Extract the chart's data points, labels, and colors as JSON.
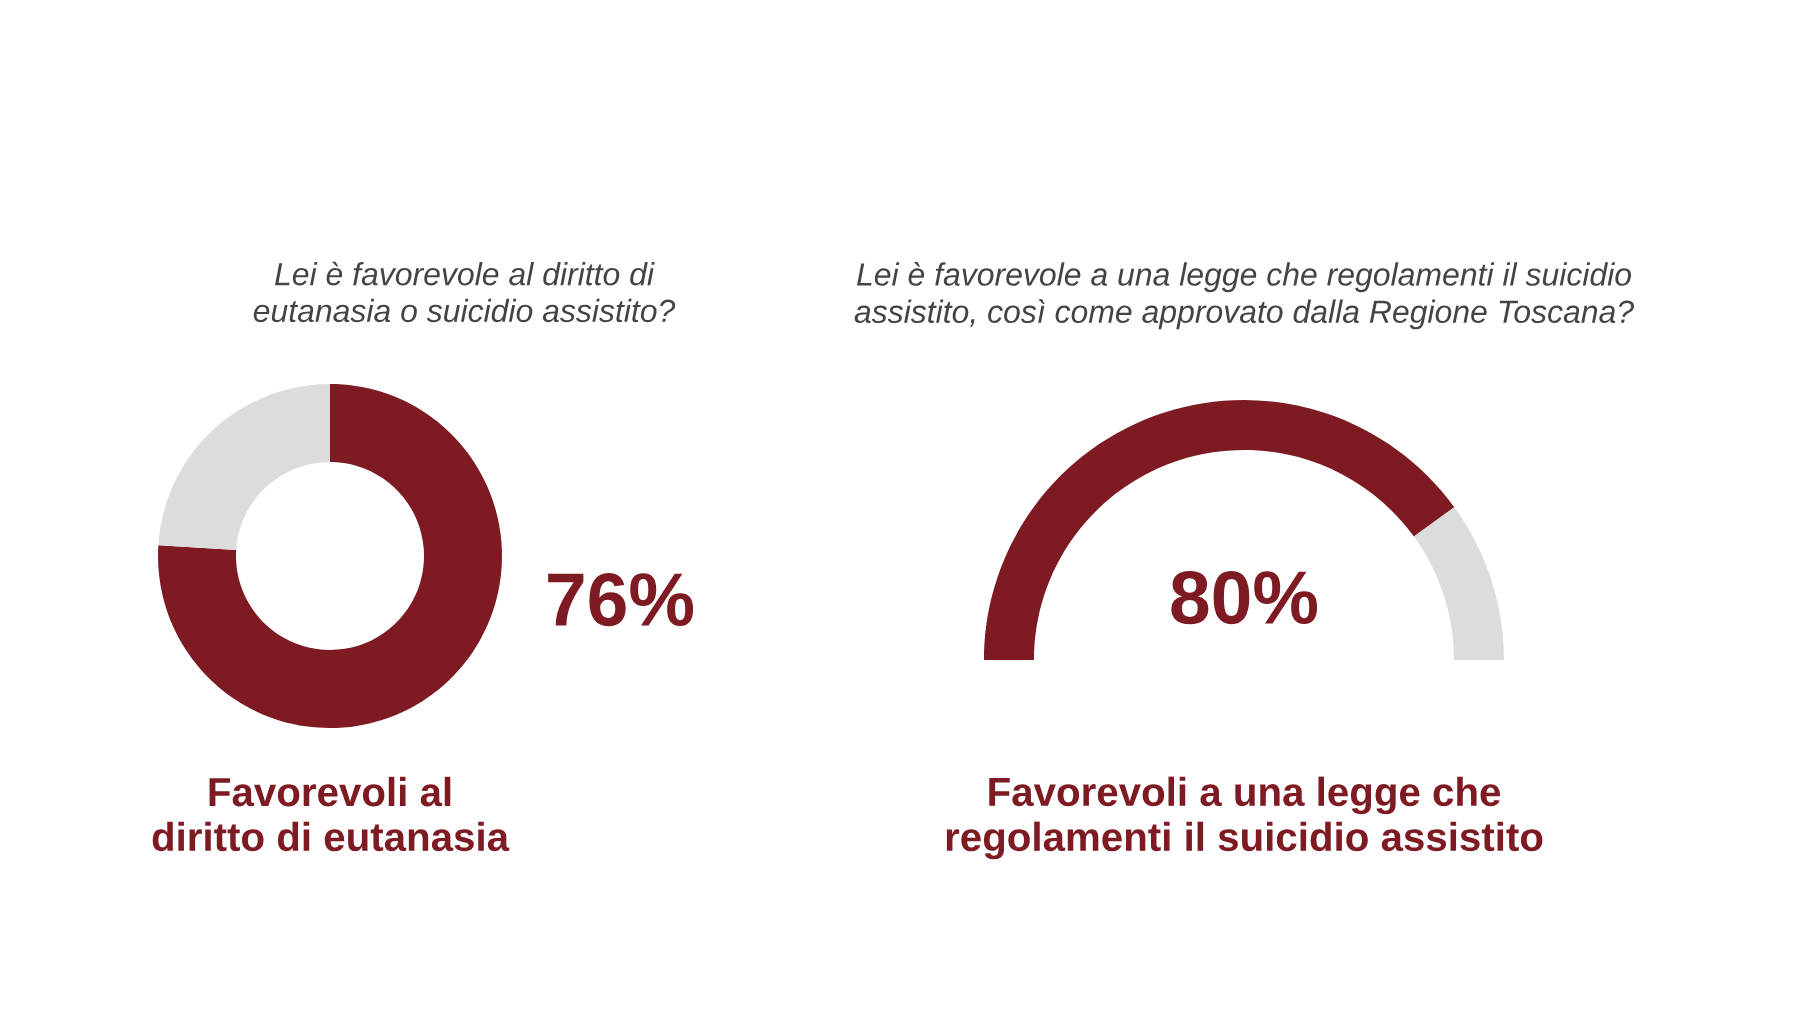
{
  "chart_data": [
    {
      "type": "donut",
      "title": "Lei è favorevole al diritto di\neutanasia o suicidio assistito?",
      "categories": [
        null,
        null
      ],
      "values": [
        76,
        24
      ],
      "colors": [
        "#7d1a22",
        "#dcdcdc"
      ],
      "value_labels": [
        "76%",
        null
      ],
      "annotations": [
        "Favorevoli al\ndiritto di eutanasia"
      ]
    },
    {
      "type": "donut",
      "title": "Lei è favorevole a una legge che regolamenti il suicidio\nassistito, così come approvato dalla Regione Toscana?",
      "categories": [
        null,
        null
      ],
      "values": [
        80,
        20
      ],
      "colors": [
        "#7d1a22",
        "#dcdcdc"
      ],
      "value_labels": [
        "80%",
        null
      ],
      "annotations": [
        "Favorevoli a una legge che\nregolamenti il suicidio assistito"
      ]
    }
  ]
}
